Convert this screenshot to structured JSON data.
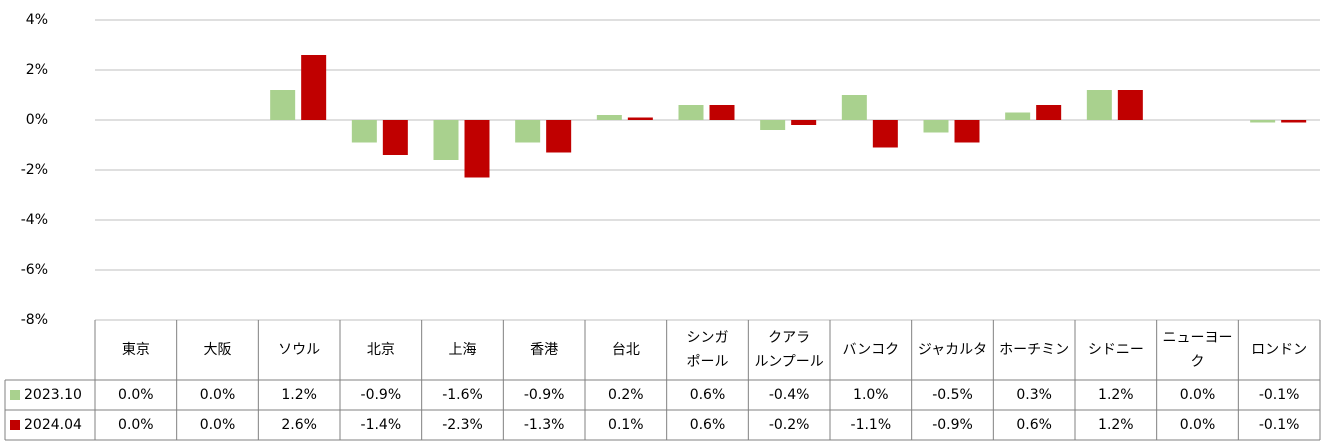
{
  "chart_data": {
    "type": "bar",
    "categories": [
      "東京",
      "大阪",
      "ソウル",
      "北京",
      "上海",
      "香港",
      "台北",
      "シンガ\nポール",
      "クアラ\nルンプール",
      "バンコク",
      "ジャカルタ",
      "ホーチミン",
      "シドニー",
      "ニューヨーク",
      "ロンドン"
    ],
    "series": [
      {
        "name": "2023.10",
        "color": "#a9d18e",
        "values": [
          0.0,
          0.0,
          1.2,
          -0.9,
          -1.6,
          -0.9,
          0.2,
          0.6,
          -0.4,
          1.0,
          -0.5,
          0.3,
          1.2,
          0.0,
          -0.1
        ],
        "value_labels": [
          "0.0%",
          "0.0%",
          "1.2%",
          "-0.9%",
          "-1.6%",
          "-0.9%",
          "0.2%",
          "0.6%",
          "-0.4%",
          "1.0%",
          "-0.5%",
          "0.3%",
          "1.2%",
          "0.0%",
          "-0.1%"
        ]
      },
      {
        "name": "2024.04",
        "color": "#c00000",
        "values": [
          0.0,
          0.0,
          2.6,
          -1.4,
          -2.3,
          -1.3,
          0.1,
          0.6,
          -0.2,
          -1.1,
          -0.9,
          0.6,
          1.2,
          0.0,
          -0.1
        ],
        "value_labels": [
          "0.0%",
          "0.0%",
          "2.6%",
          "-1.4%",
          "-2.3%",
          "-1.3%",
          "0.1%",
          "0.6%",
          "-0.2%",
          "-1.1%",
          "-0.9%",
          "0.6%",
          "1.2%",
          "0.0%",
          "-0.1%"
        ]
      }
    ],
    "ylim": [
      -8,
      4
    ],
    "yticks": [
      {
        "value": -8,
        "label": "-8%"
      },
      {
        "value": -6,
        "label": "-6%"
      },
      {
        "value": -4,
        "label": "-4%"
      },
      {
        "value": -2,
        "label": "-2%"
      },
      {
        "value": 0,
        "label": "0%"
      },
      {
        "value": 2,
        "label": "2%"
      },
      {
        "value": 4,
        "label": "4%"
      }
    ],
    "grid": true
  }
}
